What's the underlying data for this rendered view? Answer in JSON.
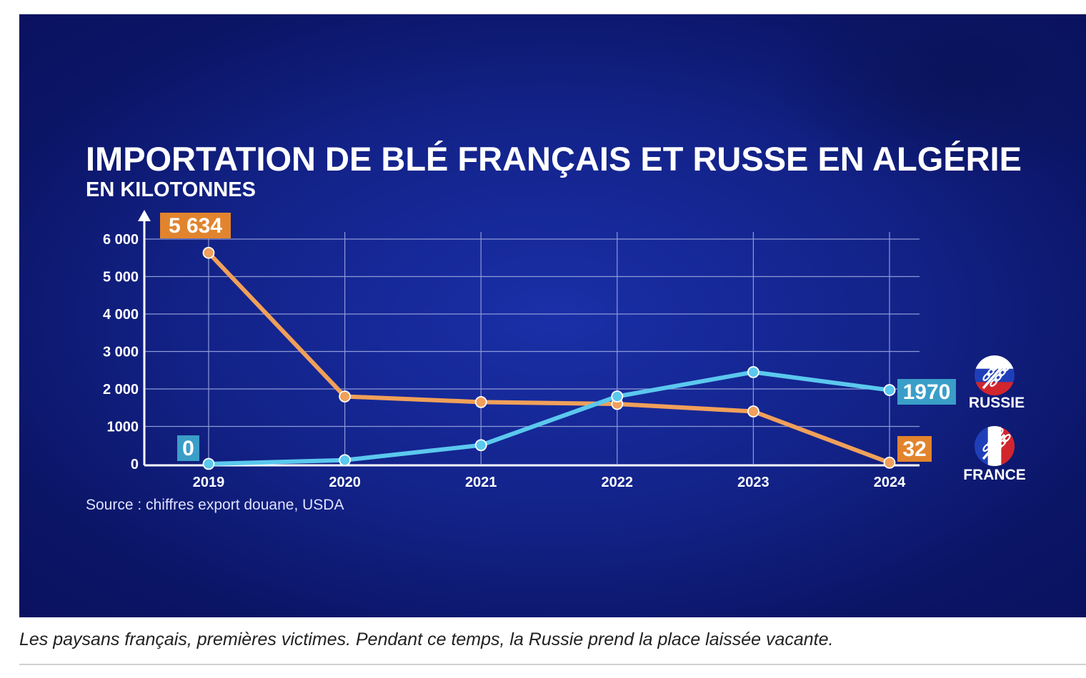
{
  "caption": "Les paysans français, premières victimes. Pendant ce temps, la Russie prend la place laissée vacante.",
  "chart_data": {
    "type": "line",
    "title": "IMPORTATION DE BLÉ FRANÇAIS ET RUSSE EN ALGÉRIE",
    "subtitle": "EN KILOTONNES",
    "source": "Source : chiffres export douane, USDA",
    "x": [
      "2019",
      "2020",
      "2021",
      "2022",
      "2023",
      "2024"
    ],
    "ylim": [
      0,
      6000
    ],
    "yticks": [
      0,
      1000,
      2000,
      3000,
      4000,
      5000,
      6000
    ],
    "ytick_labels": [
      "0",
      "1000",
      "2 000",
      "3 000",
      "4 000",
      "5 000",
      "6 000"
    ],
    "grid": true,
    "legend": "right",
    "series": [
      {
        "name": "FRANCE",
        "color": "#f0a05a",
        "values": [
          5634,
          1800,
          1650,
          1600,
          1400,
          32
        ],
        "labels": {
          "0": "5 634",
          "5": "32"
        }
      },
      {
        "name": "RUSSIE",
        "color": "#5bc8ee",
        "values": [
          0,
          100,
          500,
          1800,
          2450,
          1970
        ],
        "labels": {
          "0": "0",
          "5": "1970"
        }
      }
    ],
    "colors": {
      "badge_orange": "#e2842d",
      "badge_blue": "#3a9ec8",
      "grid": "#8e9ad6"
    },
    "icons": [
      "russie-wheat-flag-icon",
      "france-wheat-flag-icon"
    ]
  }
}
